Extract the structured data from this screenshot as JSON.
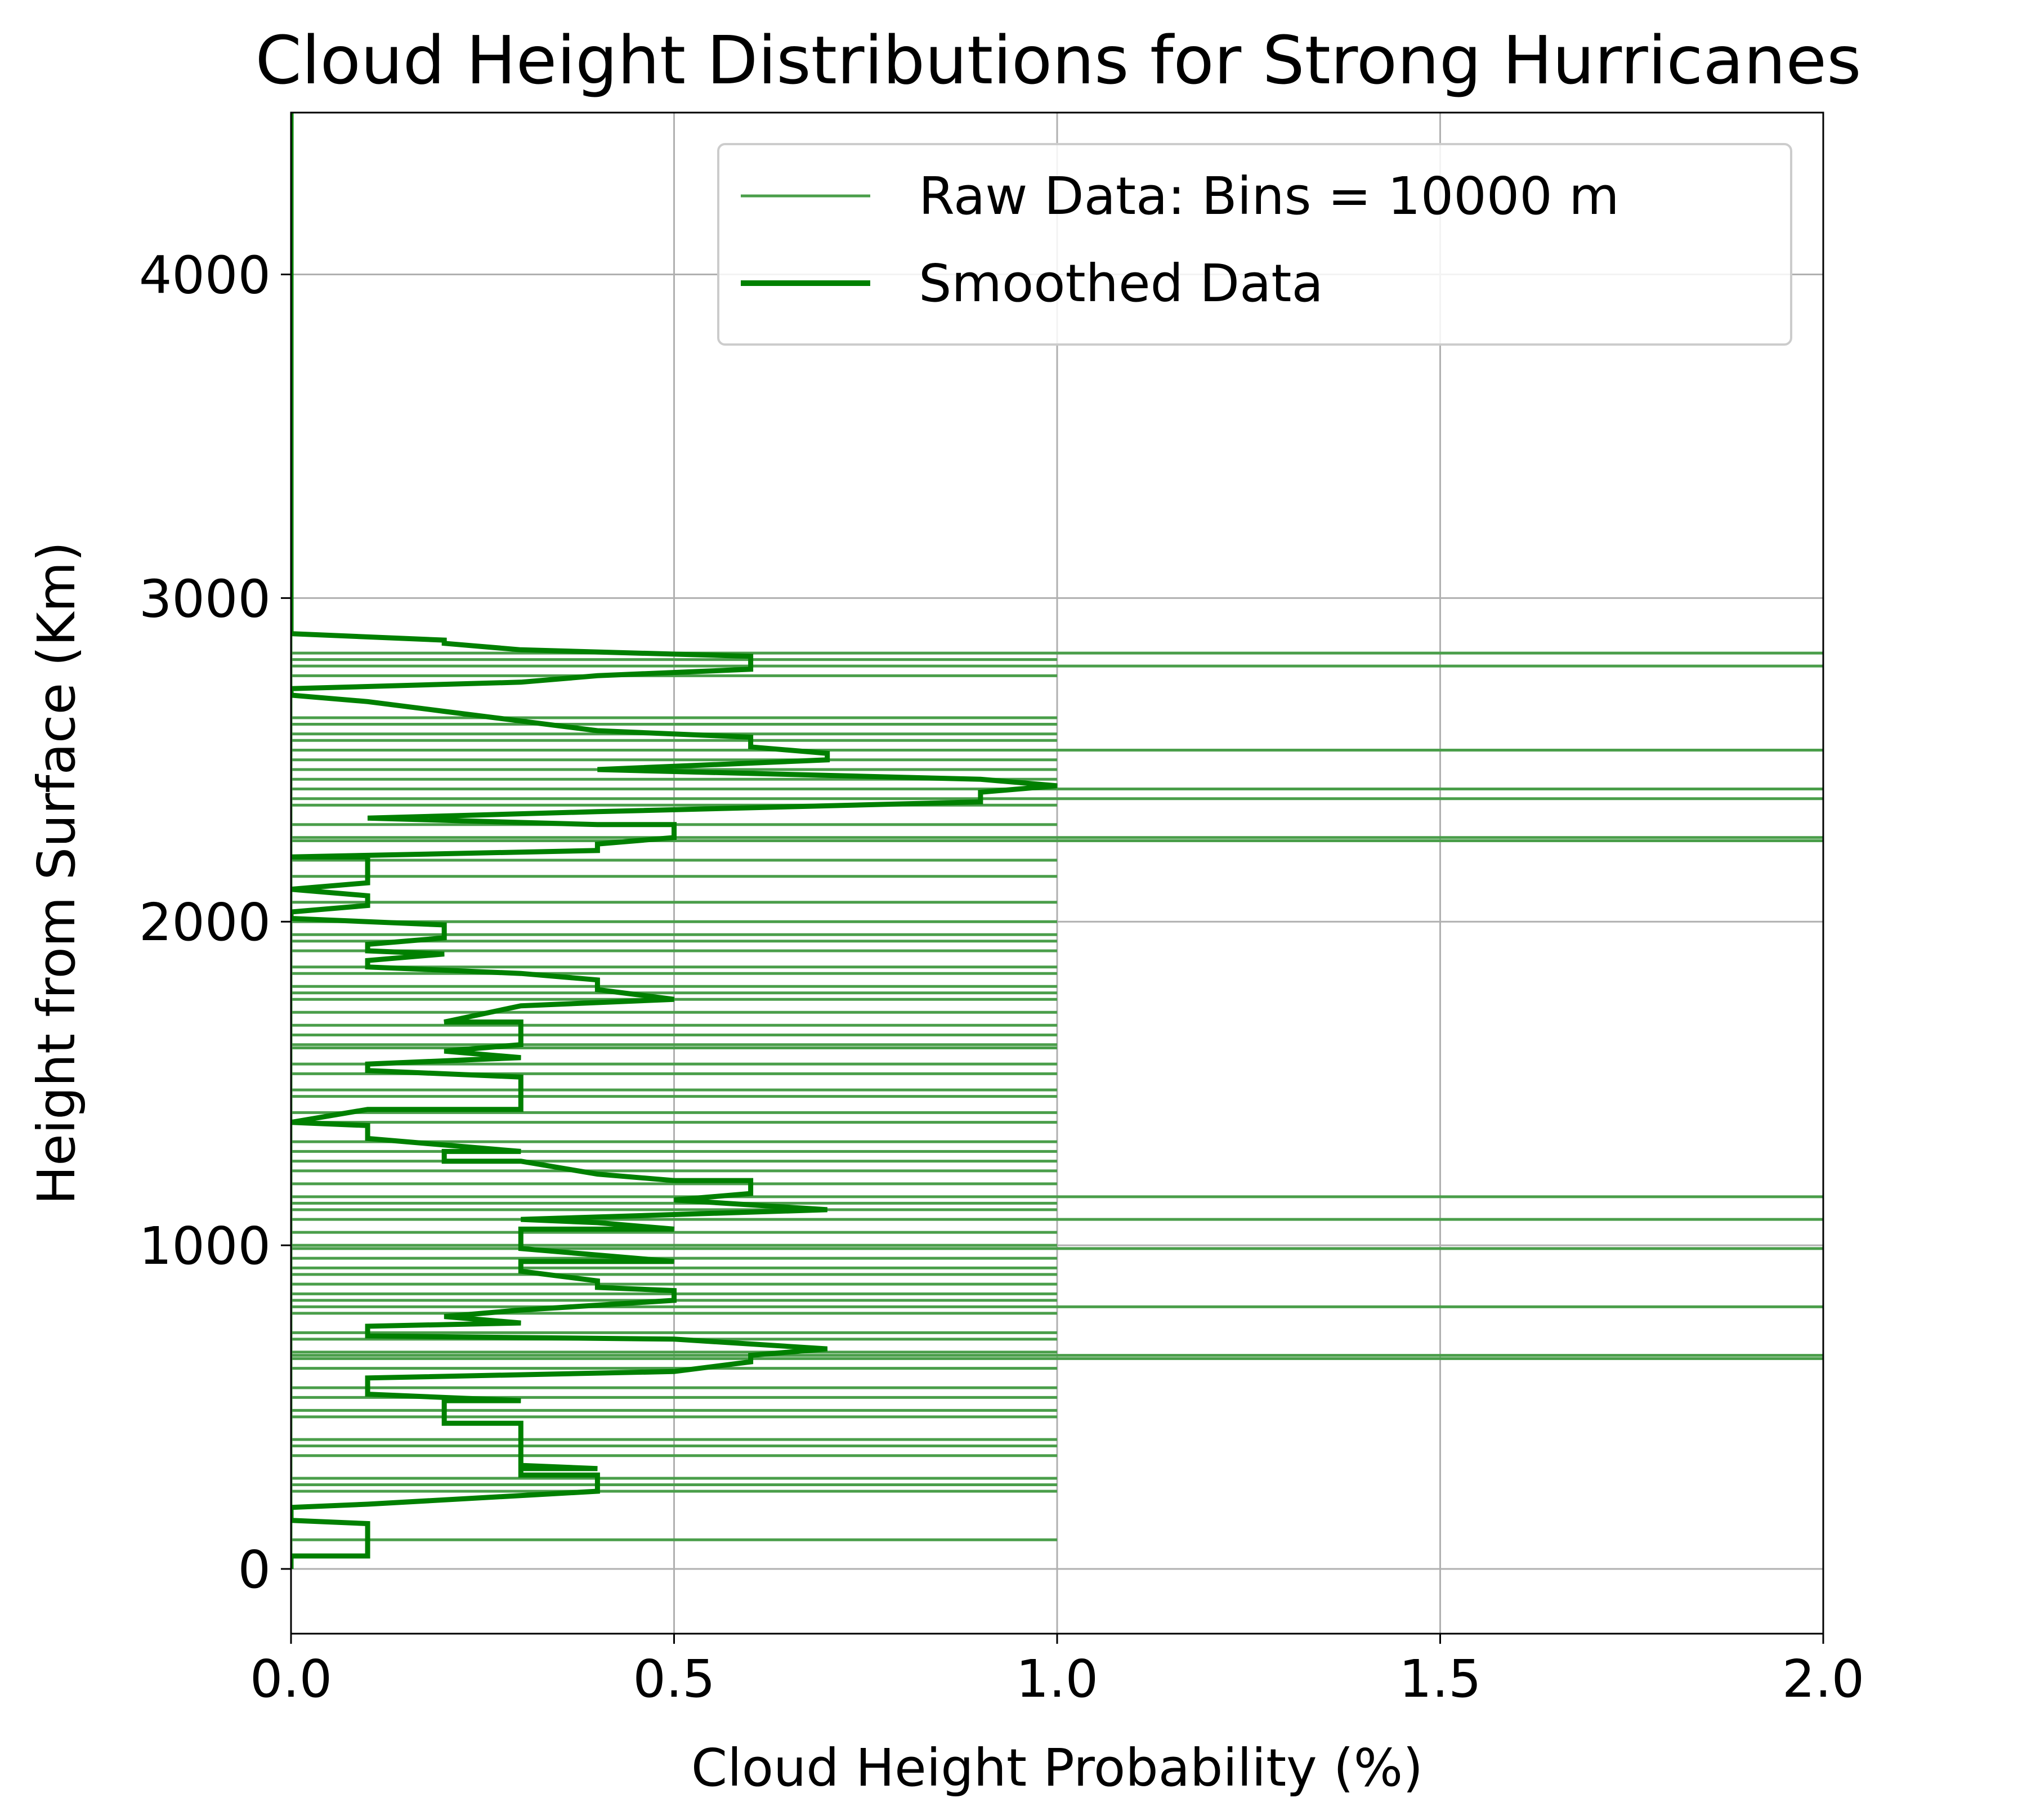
{
  "chart_data": {
    "type": "line",
    "orientation": "horizontal",
    "title": "Cloud Height Distributions for Strong Hurricanes",
    "xlabel": "Cloud Height Probability (%)",
    "ylabel": "Height from Surface (Km)",
    "xlim": [
      0.0,
      2.0
    ],
    "ylim": [
      -200,
      4500
    ],
    "xticks": [
      "0.0",
      "0.5",
      "1.0",
      "1.5",
      "2.0"
    ],
    "yticks": [
      "0",
      "1000",
      "2000",
      "3000",
      "4000"
    ],
    "grid": true,
    "legend_position": "upper right",
    "colors": {
      "raw": "#4a9e4a",
      "smoothed": "#008000",
      "grid": "#b0b0b0"
    },
    "series": [
      {
        "name": "Raw Data: Bins = 10000 m",
        "style": "horizontal bars from x=0",
        "points": [
          {
            "y": 2830,
            "x": 2.0
          },
          {
            "y": 2810,
            "x": 1.0
          },
          {
            "y": 2790,
            "x": 2.0
          },
          {
            "y": 2760,
            "x": 1.0
          },
          {
            "y": 2630,
            "x": 1.0
          },
          {
            "y": 2610,
            "x": 1.0
          },
          {
            "y": 2580,
            "x": 1.0
          },
          {
            "y": 2560,
            "x": 1.0
          },
          {
            "y": 2530,
            "x": 2.0
          },
          {
            "y": 2500,
            "x": 1.0
          },
          {
            "y": 2470,
            "x": 1.0
          },
          {
            "y": 2440,
            "x": 1.0
          },
          {
            "y": 2410,
            "x": 2.0
          },
          {
            "y": 2380,
            "x": 2.0
          },
          {
            "y": 2360,
            "x": 1.0
          },
          {
            "y": 2300,
            "x": 1.0
          },
          {
            "y": 2260,
            "x": 2.0
          },
          {
            "y": 2250,
            "x": 2.0
          },
          {
            "y": 2190,
            "x": 1.0
          },
          {
            "y": 2140,
            "x": 1.0
          },
          {
            "y": 2060,
            "x": 1.0
          },
          {
            "y": 2000,
            "x": 1.0
          },
          {
            "y": 1960,
            "x": 1.0
          },
          {
            "y": 1940,
            "x": 1.0
          },
          {
            "y": 1910,
            "x": 1.0
          },
          {
            "y": 1860,
            "x": 1.0
          },
          {
            "y": 1840,
            "x": 1.0
          },
          {
            "y": 1800,
            "x": 1.0
          },
          {
            "y": 1780,
            "x": 1.0
          },
          {
            "y": 1760,
            "x": 1.0
          },
          {
            "y": 1720,
            "x": 1.0
          },
          {
            "y": 1680,
            "x": 1.0
          },
          {
            "y": 1650,
            "x": 1.0
          },
          {
            "y": 1620,
            "x": 1.0
          },
          {
            "y": 1610,
            "x": 1.0
          },
          {
            "y": 1560,
            "x": 1.0
          },
          {
            "y": 1530,
            "x": 1.0
          },
          {
            "y": 1480,
            "x": 1.0
          },
          {
            "y": 1460,
            "x": 1.0
          },
          {
            "y": 1410,
            "x": 1.0
          },
          {
            "y": 1380,
            "x": 1.0
          },
          {
            "y": 1320,
            "x": 1.0
          },
          {
            "y": 1290,
            "x": 1.0
          },
          {
            "y": 1260,
            "x": 1.0
          },
          {
            "y": 1230,
            "x": 1.0
          },
          {
            "y": 1190,
            "x": 1.0
          },
          {
            "y": 1150,
            "x": 2.0
          },
          {
            "y": 1130,
            "x": 1.0
          },
          {
            "y": 1110,
            "x": 1.0
          },
          {
            "y": 1080,
            "x": 2.0
          },
          {
            "y": 1040,
            "x": 1.0
          },
          {
            "y": 1000,
            "x": 1.0
          },
          {
            "y": 990,
            "x": 2.0
          },
          {
            "y": 960,
            "x": 1.0
          },
          {
            "y": 930,
            "x": 1.0
          },
          {
            "y": 910,
            "x": 1.0
          },
          {
            "y": 880,
            "x": 1.0
          },
          {
            "y": 850,
            "x": 1.0
          },
          {
            "y": 830,
            "x": 1.0
          },
          {
            "y": 810,
            "x": 2.0
          },
          {
            "y": 790,
            "x": 1.0
          },
          {
            "y": 730,
            "x": 1.0
          },
          {
            "y": 710,
            "x": 1.0
          },
          {
            "y": 670,
            "x": 1.0
          },
          {
            "y": 660,
            "x": 2.0
          },
          {
            "y": 650,
            "x": 2.0
          },
          {
            "y": 620,
            "x": 1.0
          },
          {
            "y": 560,
            "x": 1.0
          },
          {
            "y": 530,
            "x": 1.0
          },
          {
            "y": 490,
            "x": 1.0
          },
          {
            "y": 470,
            "x": 1.0
          },
          {
            "y": 400,
            "x": 1.0
          },
          {
            "y": 380,
            "x": 1.0
          },
          {
            "y": 350,
            "x": 1.0
          },
          {
            "y": 280,
            "x": 1.0
          },
          {
            "y": 260,
            "x": 1.0
          },
          {
            "y": 240,
            "x": 1.0
          },
          {
            "y": 90,
            "x": 1.0
          }
        ]
      },
      {
        "name": "Smoothed Data",
        "points": [
          {
            "x": 0.0,
            "y": 0
          },
          {
            "x": 0.0,
            "y": 40
          },
          {
            "x": 0.1,
            "y": 40
          },
          {
            "x": 0.1,
            "y": 140
          },
          {
            "x": 0.0,
            "y": 150
          },
          {
            "x": 0.0,
            "y": 190
          },
          {
            "x": 0.1,
            "y": 200
          },
          {
            "x": 0.4,
            "y": 240
          },
          {
            "x": 0.4,
            "y": 290
          },
          {
            "x": 0.3,
            "y": 290
          },
          {
            "x": 0.3,
            "y": 310
          },
          {
            "x": 0.4,
            "y": 310
          },
          {
            "x": 0.3,
            "y": 320
          },
          {
            "x": 0.3,
            "y": 450
          },
          {
            "x": 0.2,
            "y": 450
          },
          {
            "x": 0.2,
            "y": 520
          },
          {
            "x": 0.3,
            "y": 520
          },
          {
            "x": 0.1,
            "y": 540
          },
          {
            "x": 0.1,
            "y": 590
          },
          {
            "x": 0.5,
            "y": 610
          },
          {
            "x": 0.6,
            "y": 640
          },
          {
            "x": 0.6,
            "y": 660
          },
          {
            "x": 0.7,
            "y": 680
          },
          {
            "x": 0.5,
            "y": 710
          },
          {
            "x": 0.1,
            "y": 720
          },
          {
            "x": 0.1,
            "y": 750
          },
          {
            "x": 0.3,
            "y": 760
          },
          {
            "x": 0.2,
            "y": 780
          },
          {
            "x": 0.3,
            "y": 800
          },
          {
            "x": 0.5,
            "y": 830
          },
          {
            "x": 0.5,
            "y": 860
          },
          {
            "x": 0.4,
            "y": 870
          },
          {
            "x": 0.4,
            "y": 890
          },
          {
            "x": 0.3,
            "y": 920
          },
          {
            "x": 0.3,
            "y": 950
          },
          {
            "x": 0.5,
            "y": 950
          },
          {
            "x": 0.3,
            "y": 990
          },
          {
            "x": 0.3,
            "y": 1050
          },
          {
            "x": 0.5,
            "y": 1050
          },
          {
            "x": 0.4,
            "y": 1070
          },
          {
            "x": 0.3,
            "y": 1080
          },
          {
            "x": 0.7,
            "y": 1110
          },
          {
            "x": 0.5,
            "y": 1140
          },
          {
            "x": 0.6,
            "y": 1160
          },
          {
            "x": 0.6,
            "y": 1200
          },
          {
            "x": 0.5,
            "y": 1200
          },
          {
            "x": 0.4,
            "y": 1220
          },
          {
            "x": 0.3,
            "y": 1260
          },
          {
            "x": 0.2,
            "y": 1260
          },
          {
            "x": 0.2,
            "y": 1290
          },
          {
            "x": 0.3,
            "y": 1290
          },
          {
            "x": 0.1,
            "y": 1330
          },
          {
            "x": 0.1,
            "y": 1370
          },
          {
            "x": 0.0,
            "y": 1380
          },
          {
            "x": 0.1,
            "y": 1420
          },
          {
            "x": 0.3,
            "y": 1420
          },
          {
            "x": 0.3,
            "y": 1520
          },
          {
            "x": 0.1,
            "y": 1540
          },
          {
            "x": 0.1,
            "y": 1560
          },
          {
            "x": 0.3,
            "y": 1580
          },
          {
            "x": 0.2,
            "y": 1600
          },
          {
            "x": 0.3,
            "y": 1620
          },
          {
            "x": 0.3,
            "y": 1690
          },
          {
            "x": 0.2,
            "y": 1690
          },
          {
            "x": 0.3,
            "y": 1740
          },
          {
            "x": 0.5,
            "y": 1760
          },
          {
            "x": 0.4,
            "y": 1790
          },
          {
            "x": 0.4,
            "y": 1820
          },
          {
            "x": 0.3,
            "y": 1840
          },
          {
            "x": 0.1,
            "y": 1860
          },
          {
            "x": 0.1,
            "y": 1880
          },
          {
            "x": 0.2,
            "y": 1900
          },
          {
            "x": 0.1,
            "y": 1910
          },
          {
            "x": 0.1,
            "y": 1930
          },
          {
            "x": 0.2,
            "y": 1950
          },
          {
            "x": 0.2,
            "y": 1990
          },
          {
            "x": 0.0,
            "y": 2010
          },
          {
            "x": 0.0,
            "y": 2030
          },
          {
            "x": 0.1,
            "y": 2050
          },
          {
            "x": 0.1,
            "y": 2080
          },
          {
            "x": 0.0,
            "y": 2100
          },
          {
            "x": 0.1,
            "y": 2120
          },
          {
            "x": 0.1,
            "y": 2200
          },
          {
            "x": 0.0,
            "y": 2200
          },
          {
            "x": 0.4,
            "y": 2220
          },
          {
            "x": 0.4,
            "y": 2240
          },
          {
            "x": 0.5,
            "y": 2260
          },
          {
            "x": 0.5,
            "y": 2300
          },
          {
            "x": 0.4,
            "y": 2300
          },
          {
            "x": 0.1,
            "y": 2320
          },
          {
            "x": 0.4,
            "y": 2340
          },
          {
            "x": 0.9,
            "y": 2370
          },
          {
            "x": 0.9,
            "y": 2400
          },
          {
            "x": 1.0,
            "y": 2420
          },
          {
            "x": 0.9,
            "y": 2440
          },
          {
            "x": 0.4,
            "y": 2470
          },
          {
            "x": 0.7,
            "y": 2500
          },
          {
            "x": 0.7,
            "y": 2520
          },
          {
            "x": 0.6,
            "y": 2540
          },
          {
            "x": 0.6,
            "y": 2570
          },
          {
            "x": 0.4,
            "y": 2590
          },
          {
            "x": 0.3,
            "y": 2620
          },
          {
            "x": 0.2,
            "y": 2650
          },
          {
            "x": 0.1,
            "y": 2680
          },
          {
            "x": 0.0,
            "y": 2700
          },
          {
            "x": 0.0,
            "y": 2720
          },
          {
            "x": 0.3,
            "y": 2740
          },
          {
            "x": 0.4,
            "y": 2760
          },
          {
            "x": 0.6,
            "y": 2780
          },
          {
            "x": 0.6,
            "y": 2820
          },
          {
            "x": 0.3,
            "y": 2840
          },
          {
            "x": 0.2,
            "y": 2860
          },
          {
            "x": 0.2,
            "y": 2870
          },
          {
            "x": 0.0,
            "y": 2890
          },
          {
            "x": 0.0,
            "y": 4500
          }
        ]
      }
    ]
  }
}
